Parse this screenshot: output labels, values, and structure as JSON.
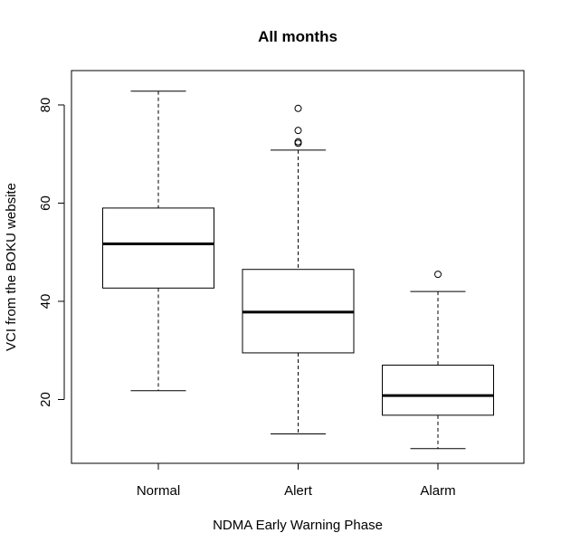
{
  "chart_data": {
    "type": "box",
    "title": "All months",
    "xlabel": "NDMA Early Warning Phase",
    "ylabel": "VCI from the BOKU website",
    "categories": [
      "Normal",
      "Alert",
      "Alarm"
    ],
    "yticks": [
      20,
      40,
      60,
      80
    ],
    "ylim": [
      7,
      87
    ],
    "grid": false,
    "legend": "none",
    "boxes": [
      {
        "category": "Normal",
        "whisker_low": 21.8,
        "q1": 42.7,
        "median": 51.7,
        "q3": 59.0,
        "whisker_high": 82.8,
        "outliers": []
      },
      {
        "category": "Alert",
        "whisker_low": 13.0,
        "q1": 29.5,
        "median": 37.8,
        "q3": 46.5,
        "whisker_high": 70.8,
        "outliers": [
          72.2,
          72.5,
          74.8,
          79.3
        ]
      },
      {
        "category": "Alarm",
        "whisker_low": 10.0,
        "q1": 16.8,
        "median": 20.8,
        "q3": 27.0,
        "whisker_high": 42.0,
        "outliers": [
          45.5
        ]
      }
    ]
  }
}
